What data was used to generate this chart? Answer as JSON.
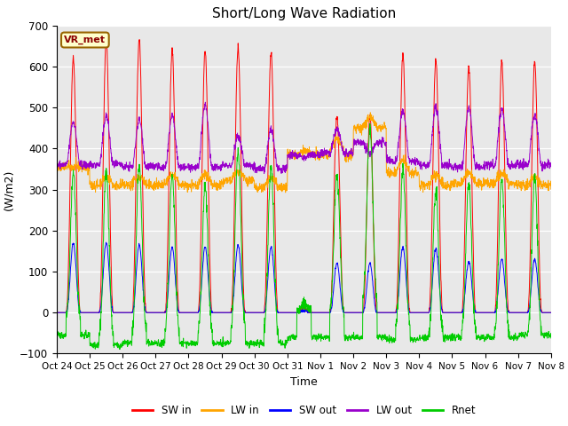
{
  "title": "Short/Long Wave Radiation",
  "ylabel": "(W/m2)",
  "xlabel": "Time",
  "ylim": [
    -100,
    700
  ],
  "yticks": [
    -100,
    0,
    100,
    200,
    300,
    400,
    500,
    600,
    700
  ],
  "station_label": "VR_met",
  "x_tick_labels": [
    "Oct 24",
    "Oct 25",
    "Oct 26",
    "Oct 27",
    "Oct 28",
    "Oct 29",
    "Oct 30",
    "Oct 31",
    "Nov 1",
    "Nov 2",
    "Nov 3",
    "Nov 4",
    "Nov 5",
    "Nov 6",
    "Nov 7",
    "Nov 8"
  ],
  "colors": {
    "SW_in": "#ff0000",
    "LW_in": "#ffa500",
    "SW_out": "#0000ff",
    "LW_out": "#9900cc",
    "Rnet": "#00cc00"
  },
  "background_color": "#e8e8e8",
  "n_days": 15,
  "pts_per_day": 144,
  "SW_in_peaks": [
    620,
    668,
    665,
    640,
    640,
    645,
    635,
    10,
    480,
    480,
    630,
    615,
    600,
    615,
    610
  ],
  "SW_out_peaks": [
    170,
    170,
    165,
    160,
    160,
    165,
    160,
    5,
    120,
    120,
    160,
    155,
    125,
    130,
    130
  ],
  "LW_in_base": [
    355,
    310,
    310,
    310,
    310,
    320,
    305,
    385,
    385,
    450,
    340,
    310,
    315,
    315,
    310
  ],
  "LW_in_bump": [
    0,
    20,
    20,
    25,
    25,
    25,
    25,
    10,
    40,
    25,
    30,
    25,
    25,
    25,
    20
  ],
  "LW_out_base": [
    360,
    360,
    355,
    355,
    355,
    360,
    350,
    385,
    390,
    415,
    370,
    360,
    355,
    360,
    360
  ],
  "LW_out_peak": [
    465,
    480,
    470,
    480,
    505,
    430,
    445,
    380,
    450,
    390,
    490,
    500,
    500,
    495,
    480
  ],
  "night_rnet": [
    -55,
    -80,
    -75,
    -75,
    -75,
    -75,
    -75,
    -60,
    -60,
    -60,
    -65,
    -60,
    -60,
    -60,
    -55
  ]
}
